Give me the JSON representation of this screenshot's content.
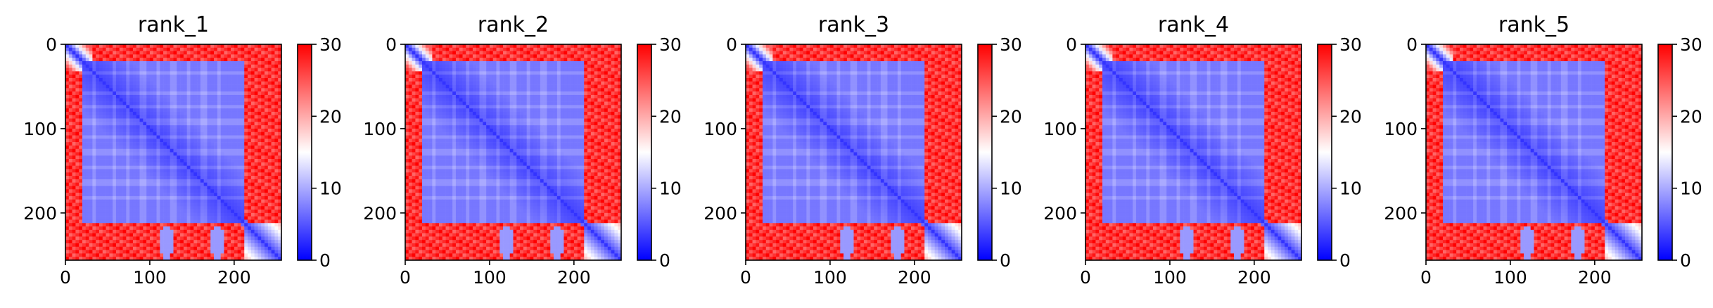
{
  "chart_data": [
    {
      "type": "heatmap",
      "title": "rank_1",
      "size": 256,
      "x_ticks": [
        "0",
        "100",
        "200"
      ],
      "y_ticks": [
        "0",
        "100",
        "200"
      ],
      "colorbar": {
        "ticks": [
          "0",
          "10",
          "20",
          "30"
        ],
        "range": [
          0,
          30
        ],
        "colors": [
          "#0000ff",
          "#ffffff",
          "#ff0000"
        ]
      },
      "structure": {
        "domain_range": [
          22,
          212
        ],
        "lower_block_rows": [
          212,
          256
        ],
        "helix_rows": [
          35,
          58,
          75,
          92,
          110,
          128,
          146,
          164,
          182
        ],
        "contact_spots": [
          [
            120,
            235
          ],
          [
            180,
            235
          ]
        ],
        "near_distance": 3,
        "far_distance": 30
      }
    },
    {
      "type": "heatmap",
      "title": "rank_2",
      "size": 256,
      "x_ticks": [
        "0",
        "100",
        "200"
      ],
      "y_ticks": [
        "0",
        "100",
        "200"
      ],
      "colorbar": {
        "ticks": [
          "0",
          "10",
          "20",
          "30"
        ],
        "range": [
          0,
          30
        ],
        "colors": [
          "#0000ff",
          "#ffffff",
          "#ff0000"
        ]
      },
      "structure": {
        "domain_range": [
          22,
          212
        ],
        "lower_block_rows": [
          212,
          256
        ],
        "helix_rows": [
          35,
          58,
          75,
          92,
          110,
          128,
          146,
          164,
          182
        ],
        "contact_spots": [
          [
            120,
            235
          ],
          [
            180,
            235
          ]
        ],
        "near_distance": 3,
        "far_distance": 30
      }
    },
    {
      "type": "heatmap",
      "title": "rank_3",
      "size": 256,
      "x_ticks": [
        "0",
        "100",
        "200"
      ],
      "y_ticks": [
        "0",
        "100",
        "200"
      ],
      "colorbar": {
        "ticks": [
          "0",
          "10",
          "20",
          "30"
        ],
        "range": [
          0,
          30
        ],
        "colors": [
          "#0000ff",
          "#ffffff",
          "#ff0000"
        ]
      },
      "structure": {
        "domain_range": [
          22,
          212
        ],
        "lower_block_rows": [
          212,
          256
        ],
        "helix_rows": [
          35,
          58,
          75,
          92,
          110,
          128,
          146,
          164,
          182
        ],
        "contact_spots": [
          [
            120,
            235
          ],
          [
            180,
            235
          ]
        ],
        "near_distance": 3,
        "far_distance": 30
      }
    },
    {
      "type": "heatmap",
      "title": "rank_4",
      "size": 256,
      "x_ticks": [
        "0",
        "100",
        "200"
      ],
      "y_ticks": [
        "0",
        "100",
        "200"
      ],
      "colorbar": {
        "ticks": [
          "0",
          "10",
          "20",
          "30"
        ],
        "range": [
          0,
          30
        ],
        "colors": [
          "#0000ff",
          "#ffffff",
          "#ff0000"
        ]
      },
      "structure": {
        "domain_range": [
          22,
          212
        ],
        "lower_block_rows": [
          212,
          256
        ],
        "helix_rows": [
          35,
          58,
          75,
          92,
          110,
          128,
          146,
          164,
          182
        ],
        "contact_spots": [
          [
            120,
            235
          ],
          [
            180,
            235
          ]
        ],
        "near_distance": 3,
        "far_distance": 30
      }
    },
    {
      "type": "heatmap",
      "title": "rank_5",
      "size": 256,
      "x_ticks": [
        "0",
        "100",
        "200"
      ],
      "y_ticks": [
        "0",
        "100",
        "200"
      ],
      "colorbar": {
        "ticks": [
          "0",
          "10",
          "20",
          "30"
        ],
        "range": [
          0,
          30
        ],
        "colors": [
          "#0000ff",
          "#ffffff",
          "#ff0000"
        ]
      },
      "structure": {
        "domain_range": [
          22,
          212
        ],
        "lower_block_rows": [
          212,
          256
        ],
        "helix_rows": [
          35,
          58,
          75,
          92,
          110,
          128,
          146,
          164,
          182
        ],
        "contact_spots": [
          [
            120,
            235
          ],
          [
            180,
            235
          ]
        ],
        "near_distance": 3,
        "far_distance": 30
      }
    }
  ]
}
